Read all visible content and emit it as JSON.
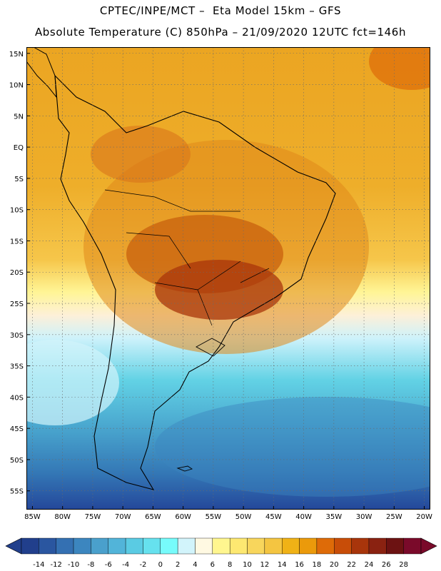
{
  "header": {
    "line1": "CPTEC/INPE/MCT –  Eta Model 15km – GFS",
    "line2": "Absolute Temperature (C) 850hPa – 21/09/2020 12UTC fct=146h"
  },
  "map": {
    "lat_labels": [
      "15N",
      "10N",
      "5N",
      "EQ",
      "5S",
      "10S",
      "15S",
      "20S",
      "25S",
      "30S",
      "35S",
      "40S",
      "45S",
      "50S",
      "55S"
    ],
    "lon_labels": [
      "85W",
      "80W",
      "75W",
      "70W",
      "65W",
      "60W",
      "55W",
      "50W",
      "45W",
      "40W",
      "35W",
      "30W",
      "25W",
      "20W"
    ],
    "extent": {
      "lon_min": -86,
      "lon_max": -19,
      "lat_min": -58,
      "lat_max": 16
    },
    "land_outline_color": "#000000",
    "grid": "dotted"
  },
  "colorbar": {
    "labels": [
      "-14",
      "-12",
      "-10",
      "-8",
      "-6",
      "-4",
      "-2",
      "0",
      "2",
      "4",
      "6",
      "8",
      "10",
      "12",
      "14",
      "16",
      "18",
      "20",
      "22",
      "24",
      "26",
      "28"
    ],
    "colors": [
      "#213f8c",
      "#2a56a0",
      "#3470b2",
      "#3c86bf",
      "#4aa0cc",
      "#52b4d9",
      "#5acbe3",
      "#66e1ee",
      "#77fbfb",
      "#d2f4fb",
      "#fff9e2",
      "#fff68f",
      "#fde871",
      "#f8d65c",
      "#f4c541",
      "#f0b216",
      "#eb9a0b",
      "#de6b08",
      "#c84d08",
      "#a8350b",
      "#8a2211",
      "#6c1212",
      "#7a0a2a"
    ],
    "under_color": "#213f8c",
    "over_color": "#7a0a2a"
  }
}
